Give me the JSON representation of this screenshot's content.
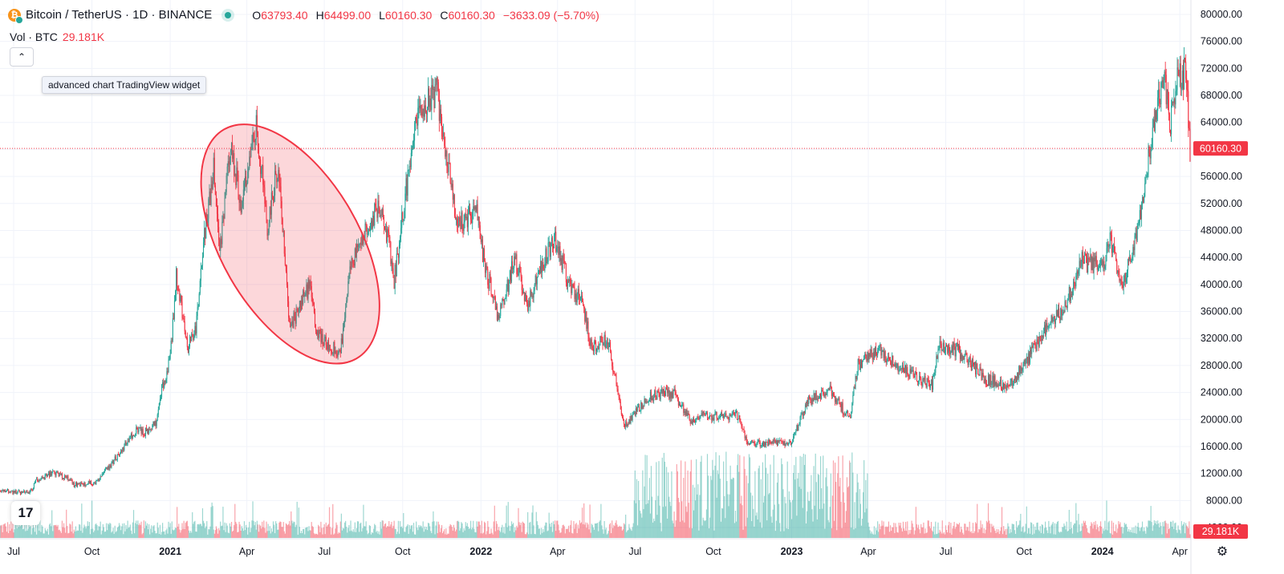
{
  "header": {
    "symbol": "Bitcoin / TetherUS · 1D · BINANCE",
    "open_label": "O",
    "open": "63793.40",
    "high_label": "H",
    "high": "64499.00",
    "low_label": "L",
    "low": "60160.30",
    "close_label": "C",
    "close": "60160.30",
    "change": "−3633.09 (−5.70%)"
  },
  "volume": {
    "label": "Vol · BTC",
    "value": "29.181K"
  },
  "tooltip": "advanced chart TradingView widget",
  "logo_text": "17",
  "colors": {
    "up": "#26a69a",
    "down": "#f23645",
    "grid": "#f0f3fa",
    "text": "#131722",
    "highlight_fill": "rgba(242,54,69,0.2)",
    "highlight_stroke": "#f23645"
  },
  "icons": [
    "bitcoin-icon",
    "chevron-up-icon",
    "tradingview-logo-icon",
    "settings-icon"
  ],
  "chart_data": {
    "type": "candlestick",
    "title": "Bitcoin / TetherUS · 1D · BINANCE",
    "x_range": [
      "2020-06-15",
      "2024-04-14"
    ],
    "y_range": [
      0,
      81000
    ],
    "y_ticks": [
      "80000.00",
      "76000.00",
      "72000.00",
      "68000.00",
      "64000.00",
      "60000.00",
      "56000.00",
      "52000.00",
      "48000.00",
      "44000.00",
      "40000.00",
      "36000.00",
      "32000.00",
      "28000.00",
      "24000.00",
      "20000.00",
      "16000.00",
      "12000.00",
      "8000.00",
      "4000.00"
    ],
    "x_ticks": [
      {
        "date": "2020-07-01",
        "label": "Jul",
        "bold": false
      },
      {
        "date": "2020-10-01",
        "label": "Oct",
        "bold": false
      },
      {
        "date": "2021-01-01",
        "label": "2021",
        "bold": true
      },
      {
        "date": "2021-04-01",
        "label": "Apr",
        "bold": false
      },
      {
        "date": "2021-07-01",
        "label": "Jul",
        "bold": false
      },
      {
        "date": "2021-10-01",
        "label": "Oct",
        "bold": false
      },
      {
        "date": "2022-01-01",
        "label": "2022",
        "bold": true
      },
      {
        "date": "2022-04-01",
        "label": "Apr",
        "bold": false
      },
      {
        "date": "2022-07-01",
        "label": "Jul",
        "bold": false
      },
      {
        "date": "2022-10-01",
        "label": "Oct",
        "bold": false
      },
      {
        "date": "2023-01-01",
        "label": "2023",
        "bold": true
      },
      {
        "date": "2023-04-01",
        "label": "Apr",
        "bold": false
      },
      {
        "date": "2023-07-01",
        "label": "Jul",
        "bold": false
      },
      {
        "date": "2023-10-01",
        "label": "Oct",
        "bold": false
      },
      {
        "date": "2024-01-01",
        "label": "2024",
        "bold": true
      },
      {
        "date": "2024-04-01",
        "label": "Apr",
        "bold": false
      }
    ],
    "series": [
      {
        "name": "Bitcoin / TetherUS",
        "points": [
          [
            "2020-06-15",
            9400
          ],
          [
            "2020-07-01",
            9200
          ],
          [
            "2020-07-20",
            9200
          ],
          [
            "2020-07-28",
            11000
          ],
          [
            "2020-08-17",
            12100
          ],
          [
            "2020-09-03",
            11200
          ],
          [
            "2020-09-10",
            10300
          ],
          [
            "2020-10-05",
            10700
          ],
          [
            "2020-10-21",
            12900
          ],
          [
            "2020-11-05",
            15600
          ],
          [
            "2020-11-24",
            18600
          ],
          [
            "2020-12-01",
            18000
          ],
          [
            "2020-12-15",
            19500
          ],
          [
            "2020-12-20",
            23400
          ],
          [
            "2021-01-01",
            29000
          ],
          [
            "2021-01-08",
            41000
          ],
          [
            "2021-01-22",
            31000
          ],
          [
            "2021-01-31",
            33000
          ],
          [
            "2021-02-09",
            46000
          ],
          [
            "2021-02-21",
            57000
          ],
          [
            "2021-02-28",
            45000
          ],
          [
            "2021-03-13",
            61000
          ],
          [
            "2021-03-25",
            52000
          ],
          [
            "2021-04-13",
            63500
          ],
          [
            "2021-04-25",
            48000
          ],
          [
            "2021-05-08",
            58000
          ],
          [
            "2021-05-19",
            37000
          ],
          [
            "2021-05-23",
            34000
          ],
          [
            "2021-06-14",
            40000
          ],
          [
            "2021-06-22",
            32500
          ],
          [
            "2021-07-20",
            29800
          ],
          [
            "2021-07-30",
            42000
          ],
          [
            "2021-08-22",
            49000
          ],
          [
            "2021-09-07",
            52000
          ],
          [
            "2021-09-21",
            40700
          ],
          [
            "2021-10-06",
            55000
          ],
          [
            "2021-10-20",
            66000
          ],
          [
            "2021-11-10",
            68800
          ],
          [
            "2021-11-25",
            57000
          ],
          [
            "2021-12-04",
            49000
          ],
          [
            "2021-12-27",
            50500
          ],
          [
            "2022-01-05",
            43000
          ],
          [
            "2022-01-22",
            35000
          ],
          [
            "2022-02-10",
            44000
          ],
          [
            "2022-02-24",
            37000
          ],
          [
            "2022-03-28",
            47000
          ],
          [
            "2022-04-15",
            40000
          ],
          [
            "2022-04-30",
            37600
          ],
          [
            "2022-05-10",
            31000
          ],
          [
            "2022-05-31",
            31700
          ],
          [
            "2022-06-13",
            22000
          ],
          [
            "2022-06-18",
            19000
          ],
          [
            "2022-07-20",
            23500
          ],
          [
            "2022-08-15",
            24000
          ],
          [
            "2022-09-05",
            19800
          ],
          [
            "2022-09-15",
            20500
          ],
          [
            "2022-10-31",
            20600
          ],
          [
            "2022-11-09",
            16500
          ],
          [
            "2022-12-31",
            16550
          ],
          [
            "2023-01-20",
            22700
          ],
          [
            "2023-02-16",
            24300
          ],
          [
            "2023-03-10",
            20000
          ],
          [
            "2023-03-20",
            28000
          ],
          [
            "2023-04-13",
            30400
          ],
          [
            "2023-05-15",
            27000
          ],
          [
            "2023-06-15",
            25000
          ],
          [
            "2023-06-23",
            30600
          ],
          [
            "2023-07-15",
            30300
          ],
          [
            "2023-08-17",
            26000
          ],
          [
            "2023-09-11",
            25000
          ],
          [
            "2023-10-01",
            27900
          ],
          [
            "2023-10-23",
            33000
          ],
          [
            "2023-11-15",
            36000
          ],
          [
            "2023-12-08",
            43500
          ],
          [
            "2023-12-31",
            42500
          ],
          [
            "2024-01-11",
            46500
          ],
          [
            "2024-01-23",
            39500
          ],
          [
            "2024-02-10",
            47500
          ],
          [
            "2024-02-28",
            62000
          ],
          [
            "2024-03-14",
            72000
          ],
          [
            "2024-03-20",
            62500
          ],
          [
            "2024-03-27",
            70000
          ],
          [
            "2024-04-08",
            71500
          ],
          [
            "2024-04-13",
            60160
          ]
        ]
      }
    ],
    "current_price_label": "60160.30",
    "current_price": 60160.3,
    "volume_label": "29.181K",
    "highlight": {
      "type": "ellipse",
      "center": [
        "2021-05-22",
        46000
      ],
      "span_days": 95,
      "span_price": 19000,
      "rotation_deg": -30
    },
    "grid": true
  }
}
